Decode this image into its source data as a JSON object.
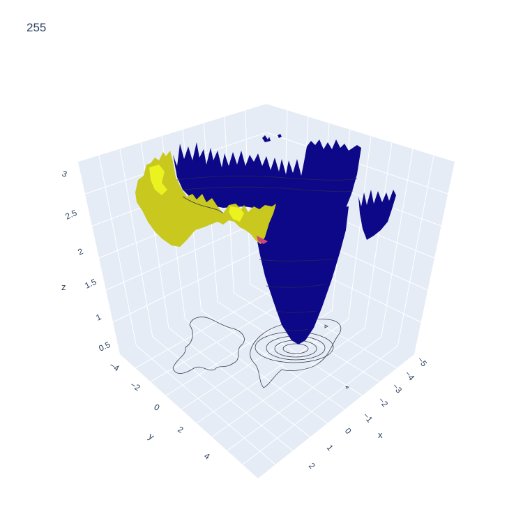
{
  "chart_data": {
    "type": "surface",
    "title": "255",
    "scene": {
      "xaxis": {
        "title": "x",
        "ticks": [
          "−5",
          "−4",
          "−3",
          "−2",
          "−1",
          "0",
          "1",
          "2"
        ]
      },
      "yaxis": {
        "title": "y",
        "ticks": [
          "−4",
          "−2",
          "0",
          "2",
          "4"
        ]
      },
      "zaxis": {
        "title": "z",
        "ticks": [
          "0.5",
          "1",
          "1.5",
          "2",
          "2.5",
          "3"
        ]
      },
      "background_color": "#e5ecf6",
      "grid": true
    },
    "surface": {
      "colorscale": [
        "#0d0887",
        "#cc4778",
        "#f0f921"
      ],
      "visible_range_z": [
        0.5,
        3.0
      ],
      "minimum": {
        "x": -1.5,
        "y": 0.5,
        "z": 0.5
      },
      "contours_projected_on_floor": true
    }
  },
  "colors": {
    "surface_low": "#0d0887",
    "surface_high": "#c8c81e",
    "surface_mid": "#cc4778",
    "grid": "#ffffff",
    "pane": "#e5ecf6",
    "text": "#2a3f5f"
  }
}
